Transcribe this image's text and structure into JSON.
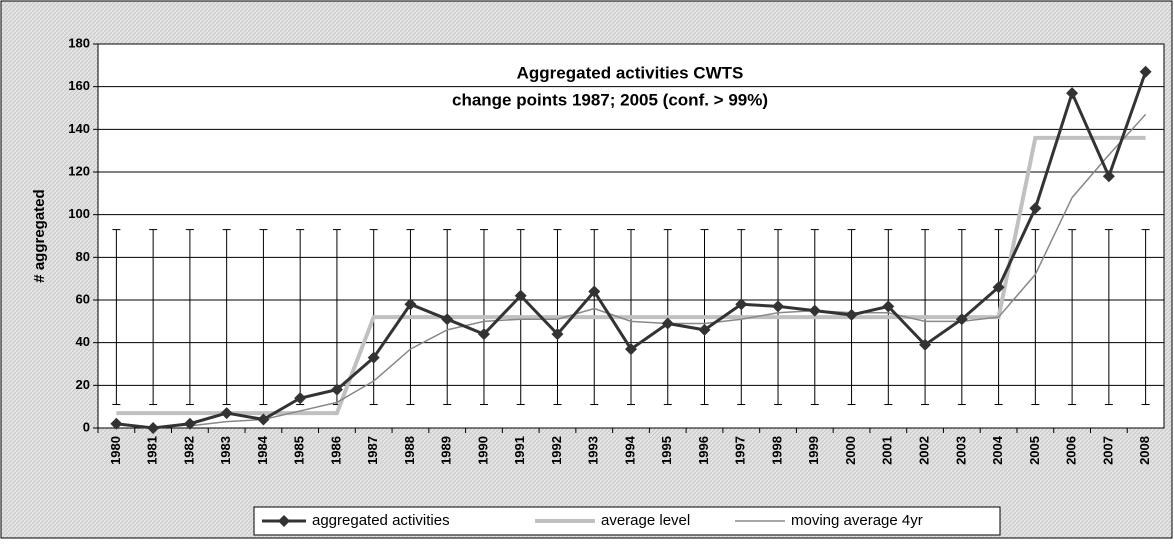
{
  "chart_data": {
    "type": "line",
    "title": "Aggregated activities CWTS",
    "subtitle": "change points 1987; 2005 (conf. > 99%)",
    "y_label": "# aggregated",
    "categories": [
      "1980",
      "1981",
      "1982",
      "1983",
      "1984",
      "1985",
      "1986",
      "1987",
      "1988",
      "1989",
      "1990",
      "1991",
      "1992",
      "1993",
      "1994",
      "1995",
      "1996",
      "1997",
      "1998",
      "1999",
      "2000",
      "2001",
      "2002",
      "2003",
      "2004",
      "2005",
      "2006",
      "2007",
      "2008"
    ],
    "series": [
      {
        "name": "aggregated activities",
        "color": "#333333",
        "values": [
          2,
          0,
          2,
          7,
          4,
          14,
          18,
          33,
          58,
          51,
          44,
          62,
          44,
          64,
          37,
          49,
          46,
          58,
          57,
          55,
          53,
          57,
          39,
          51,
          66,
          103,
          157,
          118,
          167
        ]
      },
      {
        "name": "average level",
        "color": "#c0c0c0",
        "values": [
          7,
          7,
          7,
          7,
          7,
          7,
          7,
          52,
          52,
          52,
          52,
          52,
          52,
          52,
          52,
          52,
          52,
          52,
          52,
          52,
          52,
          52,
          52,
          52,
          52,
          136,
          136,
          136,
          136
        ]
      },
      {
        "name": "moving average 4yr",
        "color": "#888888",
        "values": [
          null,
          null,
          1,
          3,
          4,
          8,
          12,
          22,
          37,
          46,
          50,
          51,
          51,
          56,
          50,
          49,
          49,
          51,
          54,
          55,
          54,
          54,
          50,
          50,
          52,
          72,
          108,
          128,
          147
        ]
      }
    ],
    "band": {
      "low": 11,
      "high": 93
    },
    "ylim": [
      0,
      180
    ],
    "yticks": [
      0,
      20,
      40,
      60,
      80,
      100,
      120,
      140,
      160,
      180
    ],
    "grid": true
  }
}
